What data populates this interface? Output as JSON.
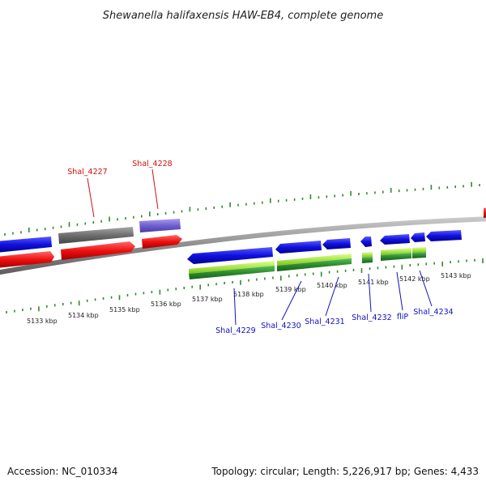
{
  "title": "Shewanella halifaxensis HAW-EB4, complete genome",
  "footer": {
    "accession": "Accession: NC_010334",
    "summary": "Topology: circular; Length: 5,226,917 bp; Genes: 4,433"
  },
  "colors": {
    "background": "#ffffff",
    "backbone": "#8c8c8c",
    "tick": "#2e8b2e",
    "forward_cds": "#1010e0",
    "forward_rna": "#e01010",
    "gene_gray": "#6e6e6e",
    "gene_purple": "#7060d0",
    "reverse_cds": "#1010e0",
    "reverse_gene_light": "#a0e040",
    "reverse_gene_dark": "#2e8b2e",
    "label_red": "#d01010",
    "label_blue": "#1010c0"
  },
  "scale": {
    "unit": "kbp",
    "labels": [
      "5133 kbp",
      "5134 kbp",
      "5135 kbp",
      "5136 kbp",
      "5137 kbp",
      "5138 kbp",
      "5139 kbp",
      "5140 kbp",
      "5141 kbp",
      "5142 kbp",
      "5143 kbp"
    ]
  },
  "genes": {
    "forward": [
      {
        "name": "Shal_4227",
        "kind": "gray"
      },
      {
        "name": "Shal_4228",
        "kind": "purple"
      }
    ],
    "reverse": [
      {
        "name": "Shal_4229"
      },
      {
        "name": "Shal_4230"
      },
      {
        "name": "Shal_4231"
      },
      {
        "name": "Shal_4232"
      },
      {
        "name": "fliP"
      },
      {
        "name": "Shal_4234"
      }
    ]
  }
}
